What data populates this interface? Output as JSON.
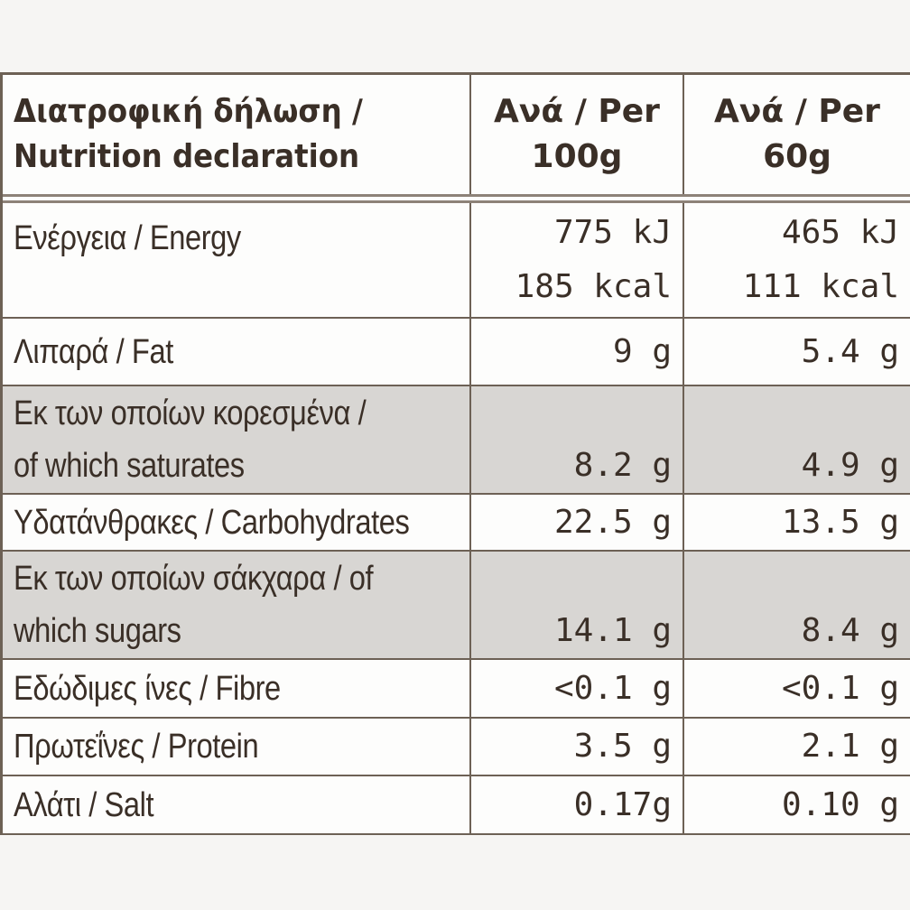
{
  "header": {
    "cells": [
      [
        "Διατροφική δήλωση /",
        "Nutrition declaration"
      ],
      [
        "Ανά / Per",
        "100g"
      ],
      [
        "Ανά / Per",
        "60g"
      ]
    ]
  },
  "rows": [
    {
      "label": [
        "Ενέργεια / Energy"
      ],
      "values": [
        [
          "775 kJ",
          "185 kcal"
        ],
        [
          "465 kJ",
          "111 kcal"
        ]
      ]
    },
    {
      "label": [
        "Λιπαρά / Fat"
      ],
      "values": [
        [
          "9 g"
        ],
        [
          "5.4 g"
        ]
      ]
    },
    {
      "label": [
        "Εκ των οποίων κορεσμένα /",
        "of which saturates"
      ],
      "values": [
        [
          "8.2 g"
        ],
        [
          "4.9 g"
        ]
      ]
    },
    {
      "label": [
        "Υδατάνθρακες / Carbohydrates"
      ],
      "values": [
        [
          "22.5 g"
        ],
        [
          "13.5 g"
        ]
      ]
    },
    {
      "label": [
        "Εκ των οποίων σάκχαρα / of",
        "which sugars"
      ],
      "values": [
        [
          "14.1 g"
        ],
        [
          "8.4 g"
        ]
      ]
    },
    {
      "label": [
        "Εδώδιμες ίνες / Fibre"
      ],
      "values": [
        [
          "<0.1 g"
        ],
        [
          "<0.1 g"
        ]
      ]
    },
    {
      "label": [
        "Πρωτεΐνες / Protein"
      ],
      "values": [
        [
          "3.5 g"
        ],
        [
          "2.1 g"
        ]
      ]
    },
    {
      "label": [
        "Αλάτι / Salt"
      ],
      "values": [
        [
          "0.17g"
        ],
        [
          "0.10 g"
        ]
      ]
    }
  ]
}
